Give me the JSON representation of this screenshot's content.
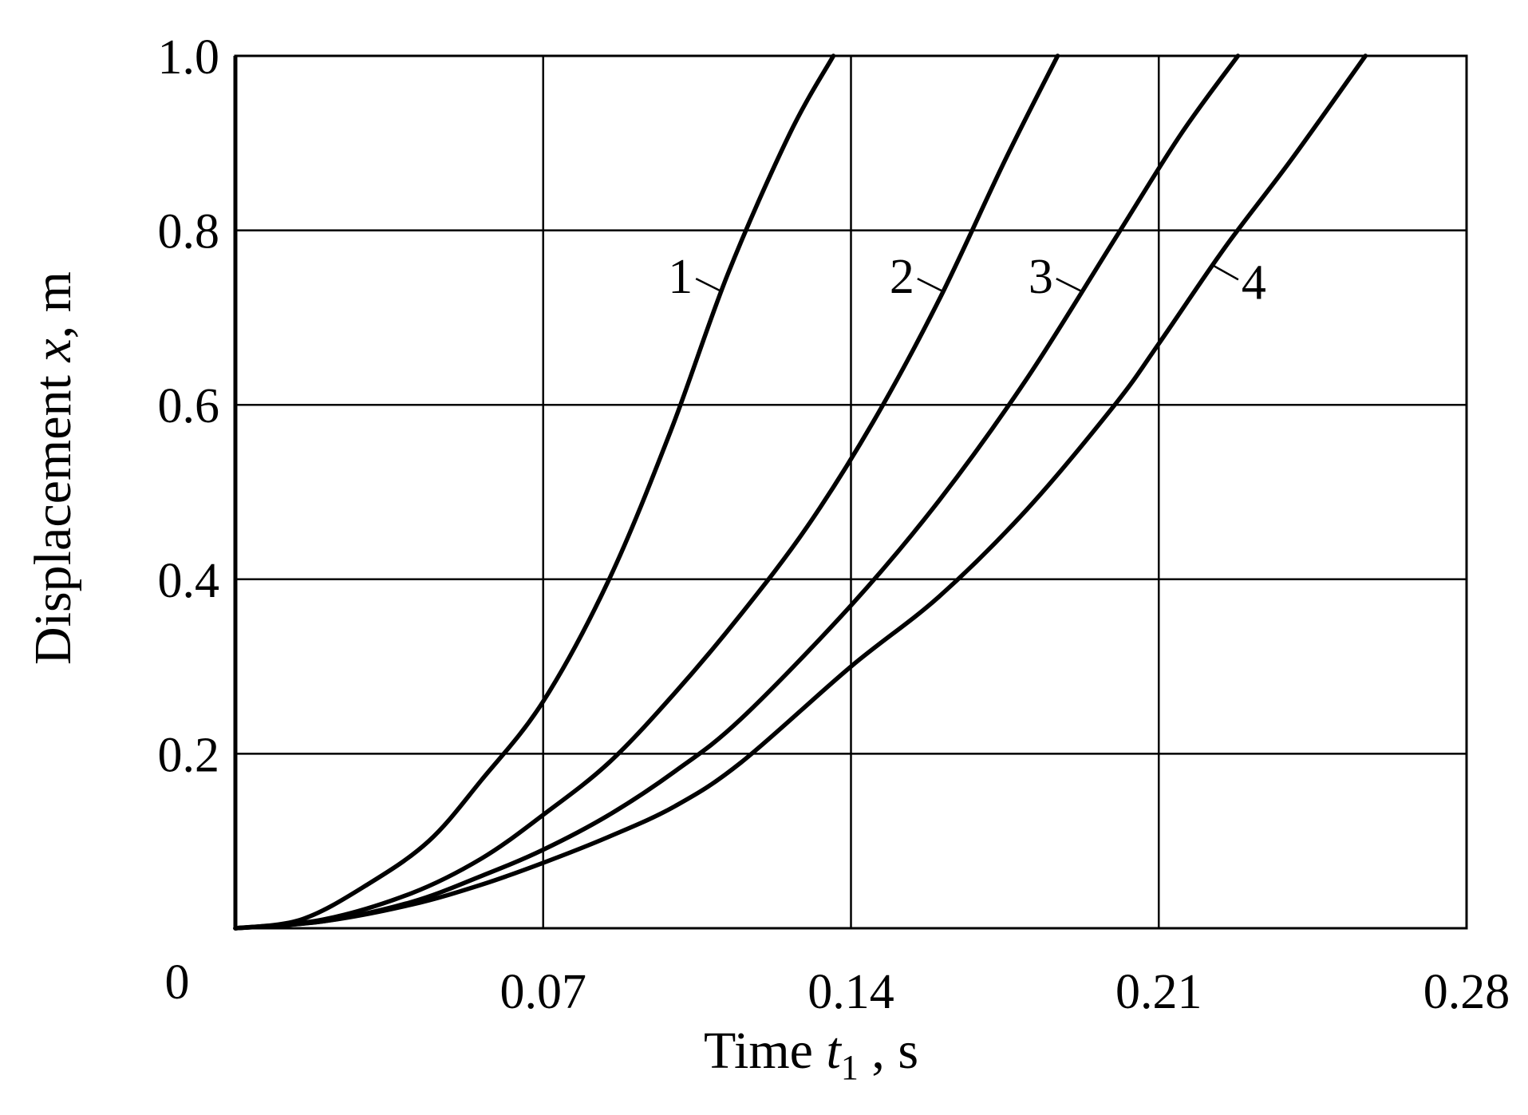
{
  "chart_data": {
    "type": "line",
    "xlabel": {
      "prefix": "Time ",
      "var": "t",
      "sub": "1",
      "suffix": " , s"
    },
    "ylabel": {
      "prefix": "Displacement  ",
      "var": "x",
      "suffix": ", m"
    },
    "xlim": [
      0,
      0.28
    ],
    "ylim": [
      0,
      1.0
    ],
    "xticks": [
      0.07,
      0.14,
      0.21,
      0.28
    ],
    "xtick_labels": [
      "0.07",
      "0.14",
      "0.21",
      "0.28"
    ],
    "yticks": [
      0.2,
      0.4,
      0.6,
      0.8,
      1.0
    ],
    "ytick_labels": [
      "0.2",
      "0.4",
      "0.6",
      "0.8",
      "1.0"
    ],
    "origin_label": "0",
    "grid": true,
    "legend": "none",
    "series": [
      {
        "label": "1",
        "x": [
          0,
          0.015,
          0.03,
          0.044,
          0.056,
          0.07,
          0.085,
          0.099,
          0.112,
          0.126,
          0.136
        ],
        "y": [
          0,
          0.01,
          0.05,
          0.1,
          0.17,
          0.26,
          0.4,
          0.57,
          0.75,
          0.91,
          1.0
        ]
      },
      {
        "label": "2",
        "x": [
          0,
          0.02,
          0.04,
          0.056,
          0.07,
          0.085,
          0.1,
          0.115,
          0.13,
          0.145,
          0.16,
          0.175,
          0.187
        ],
        "y": [
          0,
          0.01,
          0.04,
          0.08,
          0.13,
          0.19,
          0.27,
          0.36,
          0.46,
          0.58,
          0.72,
          0.88,
          1.0
        ]
      },
      {
        "label": "3",
        "x": [
          0,
          0.02,
          0.04,
          0.056,
          0.07,
          0.085,
          0.1,
          0.115,
          0.14,
          0.16,
          0.18,
          0.2,
          0.215,
          0.228
        ],
        "y": [
          0,
          0.008,
          0.03,
          0.06,
          0.09,
          0.13,
          0.18,
          0.24,
          0.37,
          0.49,
          0.63,
          0.79,
          0.91,
          1.0
        ]
      },
      {
        "label": "4",
        "x": [
          0,
          0.02,
          0.04,
          0.056,
          0.07,
          0.085,
          0.1,
          0.115,
          0.14,
          0.16,
          0.18,
          0.2,
          0.21,
          0.225,
          0.24,
          0.257
        ],
        "y": [
          0,
          0.008,
          0.027,
          0.05,
          0.075,
          0.105,
          0.14,
          0.19,
          0.3,
          0.38,
          0.48,
          0.6,
          0.67,
          0.78,
          0.88,
          1.0
        ]
      }
    ],
    "curve_labels": [
      {
        "text": "1",
        "series": 0,
        "anchor_y": 0.73
      },
      {
        "text": "2",
        "series": 1,
        "anchor_y": 0.73
      },
      {
        "text": "3",
        "series": 2,
        "anchor_y": 0.73
      },
      {
        "text": "4",
        "series": 3,
        "anchor_y": 0.76
      }
    ]
  }
}
